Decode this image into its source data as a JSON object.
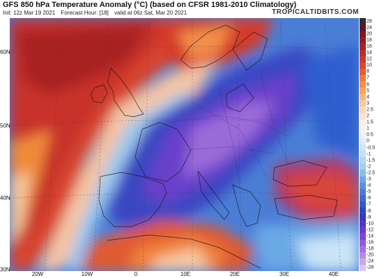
{
  "header": {
    "title": "GFS 850 hPa Temperature Anomaly (°C) (based on CFSR 1981-2010 Climatology)",
    "init": "Init: 12z Mar 19 2021",
    "forecast_hour": "Forecast Hour: [18]",
    "valid": "valid at 06z Sat, Mar 20 2021",
    "brand": "TROPICALTIDBITS.COM"
  },
  "map": {
    "lat_labels": [
      "60N",
      "50N",
      "40N",
      "30N"
    ],
    "lon_labels": [
      "20W",
      "10W",
      "0",
      "10E",
      "20E",
      "30E",
      "40E"
    ]
  },
  "colorbar": {
    "ticks": [
      "28",
      "24",
      "20",
      "18",
      "16",
      "14",
      "12",
      "10",
      "8",
      "7",
      "6",
      "5",
      "4",
      "3",
      "2.5",
      "2",
      "1.5",
      "1",
      "0.5",
      "0",
      "-0.5",
      "-1",
      "-1.5",
      "-2",
      "-2.5",
      "-3",
      "-4",
      "-5",
      "-6",
      "-7",
      "-8",
      "-9",
      "-10",
      "-12",
      "-14",
      "-16",
      "-18",
      "-20",
      "-24",
      "-28"
    ]
  },
  "colors": {
    "warm_max": "#7a1a1a",
    "warm": "#d13a2b",
    "warm_mid": "#f07a3a",
    "warm_low": "#f6c7a1",
    "neutral": "#eef0f3",
    "cool_low": "#9fd0ee",
    "cool": "#3f7fd6",
    "cool_strong": "#2e3fb8",
    "cold": "#6c3bc7",
    "cold_max": "#b28be0"
  }
}
